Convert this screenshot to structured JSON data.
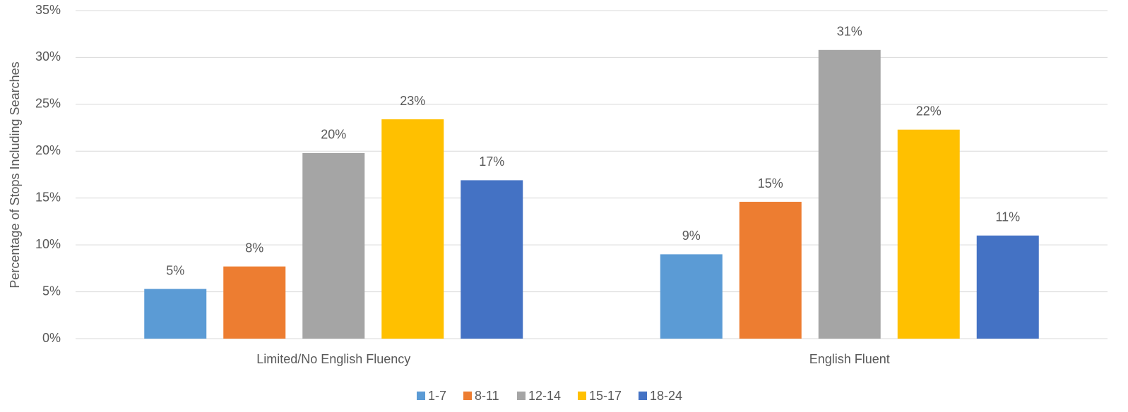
{
  "chart_data": {
    "type": "bar",
    "y_label": "Percentage of Stops Including Searches",
    "categories": [
      "Limited/No English Fluency",
      "English Fluent"
    ],
    "series": [
      {
        "name": "1-7",
        "color": "#5b9bd5",
        "values": [
          5.3,
          9.0
        ],
        "value_labels": [
          "5%",
          "9%"
        ]
      },
      {
        "name": "8-11",
        "color": "#ed7d31",
        "values": [
          7.7,
          14.6
        ],
        "value_labels": [
          "8%",
          "15%"
        ]
      },
      {
        "name": "12-14",
        "color": "#a5a5a5",
        "values": [
          19.8,
          30.8
        ],
        "value_labels": [
          "20%",
          "31%"
        ]
      },
      {
        "name": "15-17",
        "color": "#ffc000",
        "values": [
          23.4,
          22.3
        ],
        "value_labels": [
          "23%",
          "22%"
        ]
      },
      {
        "name": "18-24",
        "color": "#4472c4",
        "values": [
          16.9,
          11.0
        ],
        "value_labels": [
          "17%",
          "11%"
        ]
      }
    ],
    "ylim": [
      0,
      35
    ],
    "yticks": [
      {
        "value": 0,
        "label": "0%"
      },
      {
        "value": 5,
        "label": "5%"
      },
      {
        "value": 10,
        "label": "10%"
      },
      {
        "value": 15,
        "label": "15%"
      },
      {
        "value": 20,
        "label": "20%"
      },
      {
        "value": 25,
        "label": "25%"
      },
      {
        "value": 30,
        "label": "30%"
      },
      {
        "value": 35,
        "label": "35%"
      }
    ],
    "grid": true,
    "legend": "bottom"
  }
}
